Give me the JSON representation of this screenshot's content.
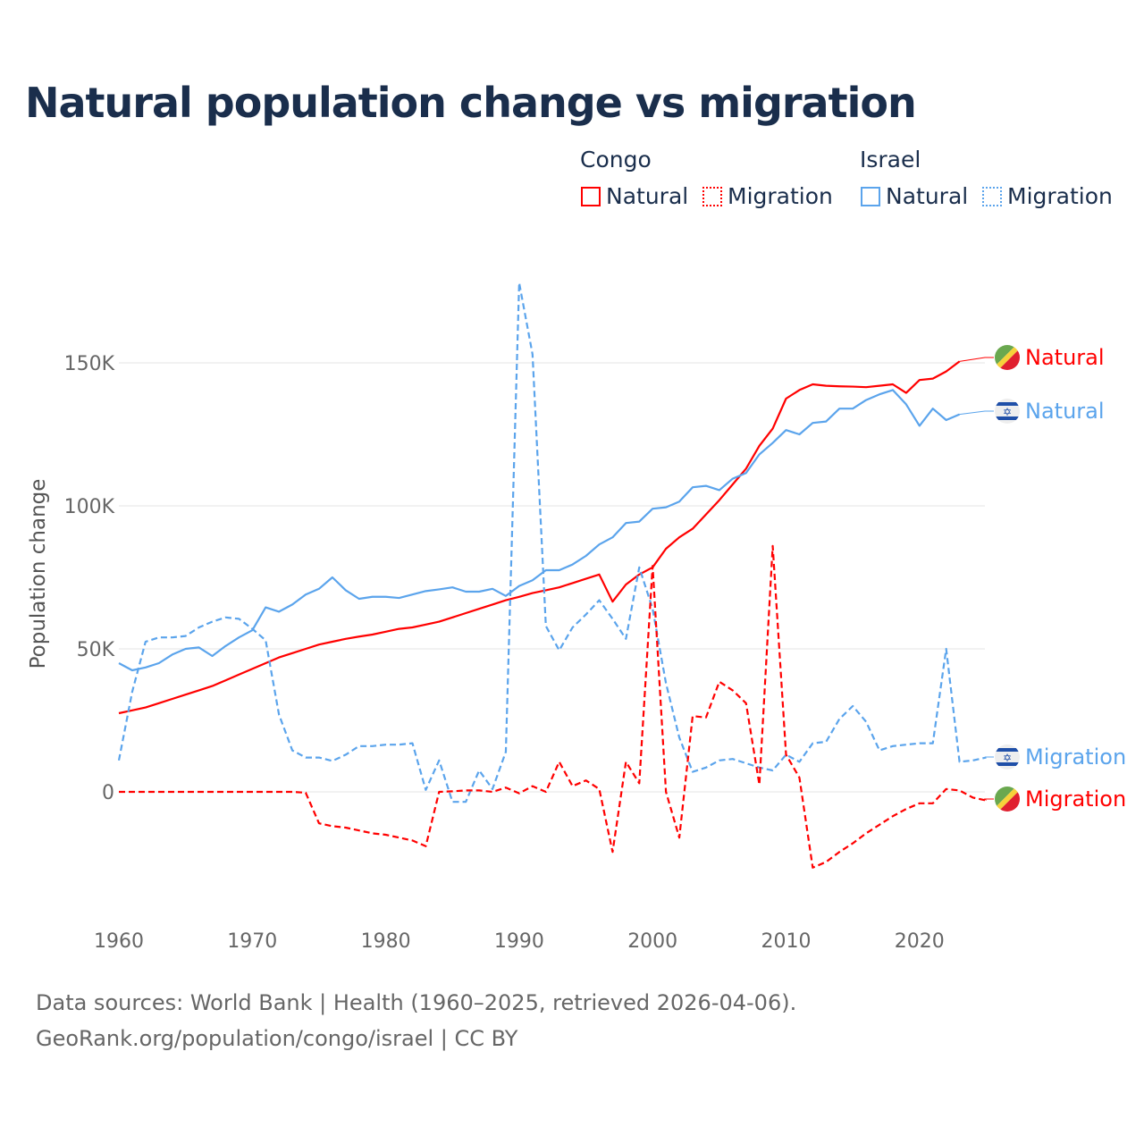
{
  "title": "Natural population change vs migration",
  "legend": {
    "groups": [
      {
        "name": "Congo",
        "items": [
          "Natural",
          "Migration"
        ],
        "color": "#ff0000"
      },
      {
        "name": "Israel",
        "items": [
          "Natural",
          "Migration"
        ],
        "color": "#5ba4ec"
      }
    ]
  },
  "footer": {
    "line1": "Data sources: World Bank | Health (1960–2025, retrieved 2026-04-06).",
    "line2": "GeoRank.org/population/congo/israel | CC BY"
  },
  "chart_data": {
    "type": "line",
    "title": "Natural population change vs migration",
    "xlabel": "",
    "ylabel": "Population change",
    "xlim": [
      1960,
      2025
    ],
    "ylim": [
      -40000,
      185000
    ],
    "x_ticks": [
      1960,
      1970,
      1980,
      1990,
      2000,
      2010,
      2020
    ],
    "x_tick_labels": [
      "1960",
      "1970",
      "1980",
      "1990",
      "2000",
      "2010",
      "2020"
    ],
    "y_ticks": [
      0,
      50000,
      100000,
      150000
    ],
    "y_tick_labels": [
      "0",
      "50K",
      "100K",
      "150K"
    ],
    "grid": true,
    "legend_position": "top-right",
    "series": [
      {
        "name": "Congo Natural",
        "label": "Natural",
        "color": "#ff0000",
        "dash": false,
        "flag": "congo",
        "start": 1960,
        "values": [
          27500,
          28500,
          29500,
          31000,
          32500,
          34000,
          35500,
          37000,
          39000,
          41000,
          43000,
          45000,
          47000,
          48500,
          50000,
          51500,
          52500,
          53500,
          54300,
          55000,
          56000,
          57000,
          57500,
          58500,
          59500,
          61000,
          62500,
          64000,
          65500,
          67000,
          68200,
          69500,
          70500,
          71500,
          73000,
          74500,
          76000,
          66500,
          72500,
          76000,
          78500,
          85000,
          89000,
          92000,
          97000,
          102000,
          107500,
          113000,
          121000,
          127000,
          137500,
          140500,
          142500,
          142000,
          141800,
          141700,
          141500,
          142000,
          142500,
          139500,
          144000,
          144500,
          147000,
          150500
        ]
      },
      {
        "name": "Israel Natural",
        "label": "Natural",
        "color": "#5ba4ec",
        "dash": false,
        "flag": "israel",
        "start": 1960,
        "values": [
          45000,
          42500,
          43500,
          45000,
          48000,
          50000,
          50500,
          47500,
          51000,
          54000,
          56500,
          64500,
          63000,
          65500,
          69000,
          71000,
          75000,
          70500,
          67500,
          68200,
          68200,
          67800,
          69000,
          70200,
          70800,
          71500,
          70000,
          70000,
          71000,
          68500,
          72000,
          74000,
          77500,
          77500,
          79500,
          82500,
          86500,
          89000,
          94000,
          94500,
          99000,
          99500,
          101500,
          106500,
          107000,
          105500,
          109500,
          111500,
          118000,
          122000,
          126500,
          125000,
          129000,
          129500,
          134000,
          134000,
          137000,
          139000,
          140500,
          135500,
          128000,
          134000,
          130000,
          132000
        ]
      },
      {
        "name": "Israel Migration",
        "label": "Migration",
        "color": "#5ba4ec",
        "dash": true,
        "flag": "israel",
        "start": 1960,
        "values": [
          11000,
          35000,
          52500,
          54000,
          54000,
          54500,
          57500,
          59500,
          61000,
          60500,
          57000,
          53000,
          27000,
          14500,
          12000,
          12000,
          10800,
          13000,
          16000,
          16000,
          16500,
          16500,
          17000,
          700,
          11000,
          -3500,
          -3500,
          7500,
          1000,
          14000,
          178000,
          153000,
          58000,
          49500,
          57500,
          62000,
          67000,
          60500,
          53500,
          78500,
          64000,
          38000,
          19000,
          7000,
          8500,
          11000,
          11500,
          10000,
          8500,
          7500,
          13000,
          10500,
          17000,
          17500,
          25500,
          30000,
          24500,
          14500,
          16000,
          16500,
          17000,
          17000,
          50000,
          10500,
          11000,
          12000
        ]
      },
      {
        "name": "Congo Migration",
        "label": "Migration",
        "color": "#ff0000",
        "dash": true,
        "flag": "congo",
        "start": 1960,
        "values": [
          0,
          0,
          0,
          0,
          0,
          0,
          0,
          0,
          0,
          0,
          0,
          0,
          0,
          0,
          -300,
          -11000,
          -12000,
          -12500,
          -13500,
          -14500,
          -15000,
          -16000,
          -17000,
          -19000,
          0,
          200,
          500,
          500,
          0,
          1500,
          -500,
          2000,
          0,
          10500,
          2000,
          4000,
          1000,
          -21000,
          10500,
          3000,
          79000,
          0,
          -16000,
          26500,
          26000,
          38500,
          35500,
          31000,
          2500,
          86000,
          13000,
          5000,
          -26500,
          -24500,
          -21000,
          -18000,
          -14500,
          -11500,
          -8500,
          -6000,
          -4000,
          -4000,
          1000,
          500,
          -2000,
          -3000
        ]
      }
    ]
  }
}
